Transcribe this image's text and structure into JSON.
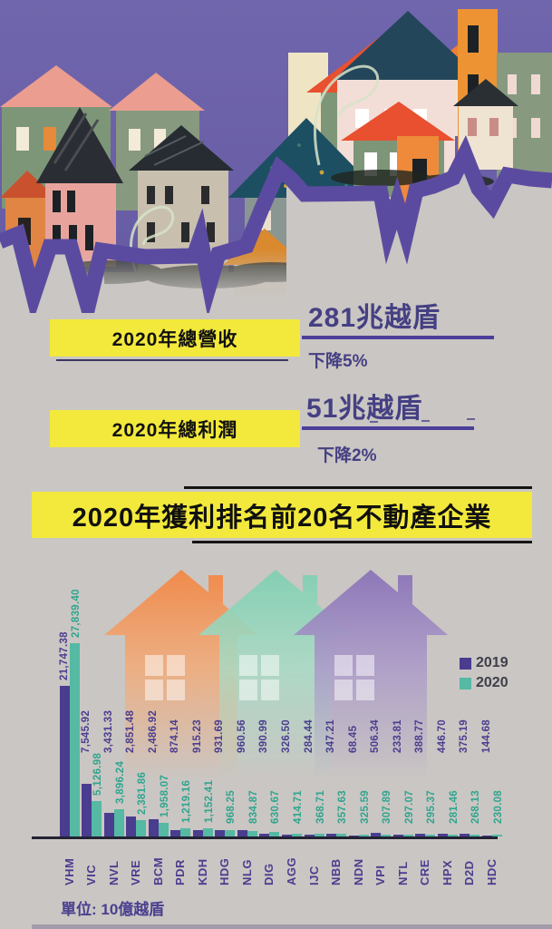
{
  "stats": {
    "revenue": {
      "label": "2020年總營收",
      "value": "281兆越盾",
      "change": "下降5%"
    },
    "profit": {
      "label": "2020年總利潤",
      "value": "51兆越盾",
      "change": "下降2%"
    }
  },
  "title": "2020年獲利排名前20名不動產企業",
  "unit_label": "單位: 10億越盾",
  "legend": {
    "y2019": "2019",
    "y2020": "2020"
  },
  "icons": {
    "village": "village-houses-illustration",
    "zigzag": "jagged-trend-line",
    "chart_houses": [
      "house-silhouette-orange",
      "house-silhouette-teal",
      "house-silhouette-purple"
    ]
  },
  "colors": {
    "background": "#cac6c3",
    "yellow": "#f3e93c",
    "stat_text": "#454083",
    "underline": "#4c3f99",
    "bar_2019": "#4a3d8f",
    "bar_2020": "#55b9a3",
    "label_2019": "#4a3d8f",
    "label_2020": "#2fa58e",
    "axis": "#232334",
    "zigzag": "#5b4ba0",
    "sky": "#7066ad"
  },
  "chart_data": {
    "type": "bar",
    "title": "2020年獲利排名前20名不動產企業",
    "ylabel": "10億越盾",
    "ylim": [
      0,
      28000
    ],
    "grid": false,
    "legend_position": "right",
    "categories": [
      "VHM",
      "VIC",
      "NVL",
      "VRE",
      "BCM",
      "PDR",
      "KDH",
      "HDG",
      "NLG",
      "DIG",
      "AGG",
      "IJC",
      "NBB",
      "NDN",
      "VPI",
      "NTL",
      "CRE",
      "HPX",
      "D2D",
      "HDC"
    ],
    "series": [
      {
        "name": "2019",
        "values": [
          21747.38,
          7545.92,
          3431.33,
          2851.48,
          2486.92,
          874.14,
          915.23,
          931.69,
          960.56,
          390.99,
          326.5,
          284.44,
          347.21,
          68.45,
          506.34,
          233.81,
          388.77,
          446.7,
          375.19,
          144.68
        ],
        "labels": [
          "21,747.38",
          "7,545.92",
          "3,431.33",
          "2,851.48",
          "2,486.92",
          "874.14",
          "915.23",
          "931.69",
          "960.56",
          "390.99",
          "326.50",
          "284.44",
          "347.21",
          "68.45",
          "506.34",
          "233.81",
          "388.77",
          "446.70",
          "375.19",
          "144.68"
        ]
      },
      {
        "name": "2020",
        "values": [
          27839.4,
          5126.98,
          3896.24,
          2381.86,
          1958.07,
          1219.16,
          1152.41,
          968.25,
          834.87,
          630.67,
          414.71,
          368.71,
          357.63,
          325.59,
          307.89,
          297.07,
          295.37,
          281.46,
          268.13,
          230.08
        ],
        "labels": [
          "27,839.40",
          "5,126.98",
          "3,896.24",
          "2,381.86",
          "1,958.07",
          "1,219.16",
          "1,152.41",
          "968.25",
          "834.87",
          "630.67",
          "414.71",
          "368.71",
          "357.63",
          "325.59",
          "307.89",
          "297.07",
          "295.37",
          "281.46",
          "268.13",
          "230.08"
        ]
      }
    ]
  }
}
